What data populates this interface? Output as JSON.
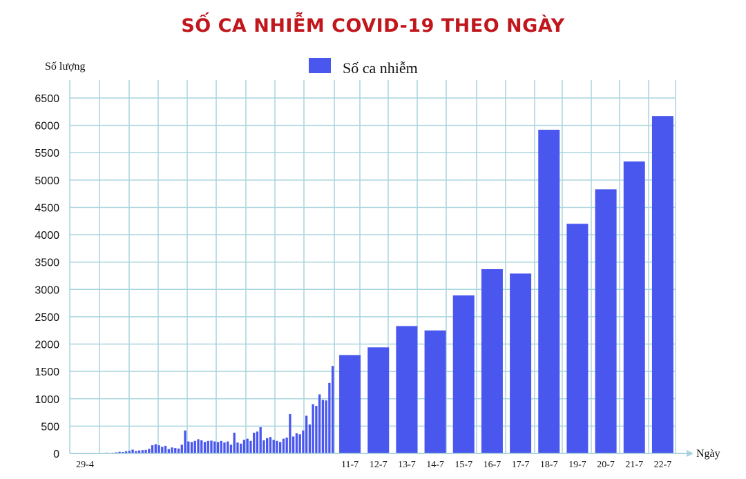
{
  "title": "SỐ CA NHIỄM COVID-19 THEO NGÀY",
  "colors": {
    "bar": "#4a57ef",
    "grid": "#a9d4de",
    "title": "#c0161c"
  },
  "chart_data": {
    "type": "bar",
    "title": "SỐ CA NHIỄM COVID-19 THEO NGÀY",
    "ylabel": "Số lượng",
    "xlabel": "Ngày",
    "ylim": [
      0,
      6500
    ],
    "yticks": [
      0,
      500,
      1000,
      1500,
      2000,
      2500,
      3000,
      3500,
      4000,
      4500,
      5000,
      5500,
      6000,
      6500
    ],
    "grid": true,
    "legend_position": "top-center",
    "series": [
      {
        "name": "Số ca nhiễm"
      }
    ],
    "early_start_label": "29-4",
    "early_values": [
      3,
      2,
      4,
      3,
      5,
      8,
      12,
      6,
      10,
      15,
      9,
      14,
      20,
      30,
      25,
      40,
      50,
      70,
      45,
      55,
      60,
      65,
      85,
      150,
      170,
      150,
      120,
      140,
      80,
      110,
      100,
      90,
      160,
      420,
      220,
      210,
      230,
      260,
      240,
      210,
      230,
      235,
      220,
      210,
      230,
      200,
      220,
      160,
      380,
      200,
      180,
      250,
      270,
      230,
      380,
      400,
      480,
      240,
      280,
      300,
      250,
      230,
      210,
      270,
      290,
      720,
      310,
      370,
      350,
      420,
      690,
      530,
      900,
      870,
      1080,
      980,
      970,
      1290,
      1600
    ],
    "categories": [
      "11-7",
      "12-7",
      "13-7",
      "14-7",
      "15-7",
      "16-7",
      "17-7",
      "18-7",
      "19-7",
      "20-7",
      "21-7",
      "22-7"
    ],
    "values": [
      1800,
      1940,
      2330,
      2250,
      2890,
      3370,
      3290,
      5920,
      4200,
      4830,
      5340,
      6170
    ]
  }
}
